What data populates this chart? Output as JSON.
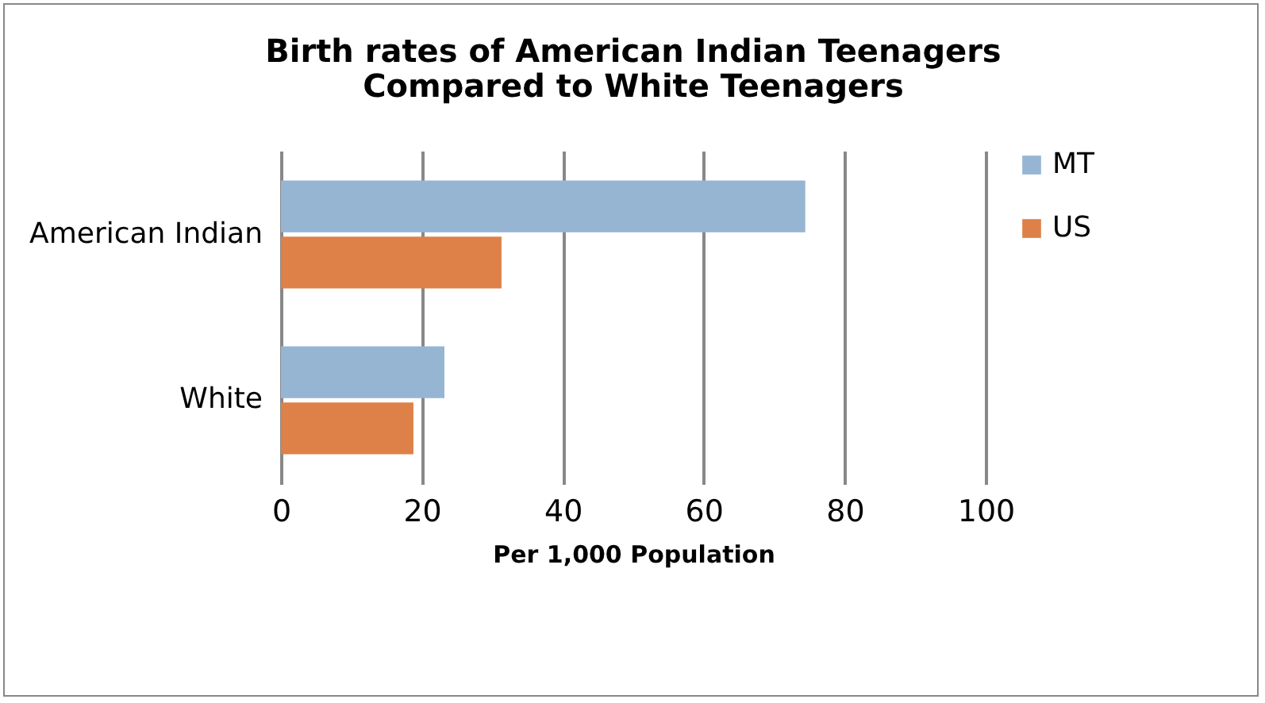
{
  "chart_data": {
    "type": "bar",
    "orientation": "horizontal",
    "title": "Birth rates of American Indian Teenagers\nCompared to White Teenagers",
    "xlabel": "Per 1,000 Population",
    "categories": [
      "American Indian",
      "White"
    ],
    "series": [
      {
        "name": "MT",
        "color": "#95b5d3",
        "values": [
          74.4,
          23.2
        ]
      },
      {
        "name": "US",
        "color": "#de8148",
        "values": [
          31.3,
          18.8
        ]
      }
    ],
    "xlim": [
      0,
      100
    ],
    "xticks": [
      0,
      20,
      40,
      60,
      80,
      100
    ],
    "grid": "x",
    "legend": "right"
  }
}
